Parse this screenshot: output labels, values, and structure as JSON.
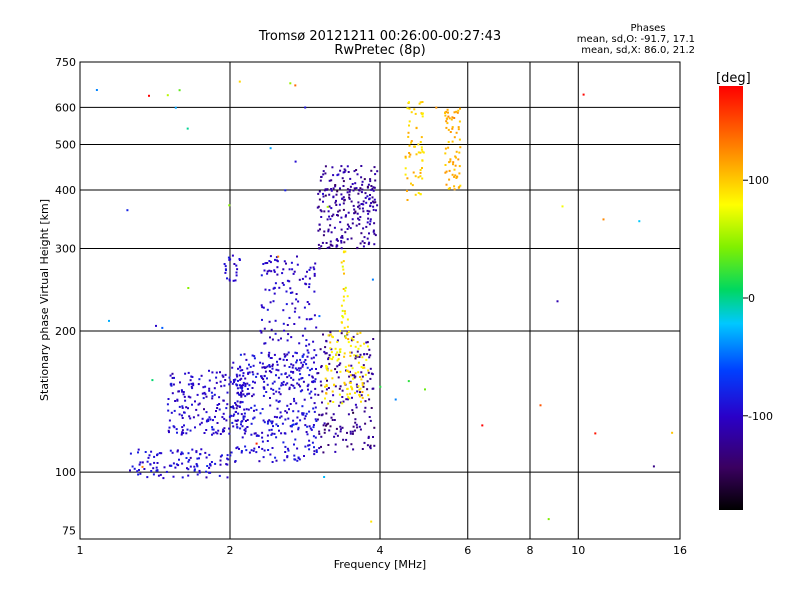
{
  "chart_data": {
    "type": "scatter",
    "title": "Tromsø 20121211 00:26:00-00:27:43",
    "subtitle": "RwPretec (8p)",
    "phases_header": "Phases",
    "phases_o": "mean, sd,O: -91.7, 17.1",
    "phases_x": "mean, sd,X:  86.0, 21.2",
    "xlabel": "Frequency [MHz]",
    "ylabel": "Stationary phase Virtual Height [km]",
    "xscale": "log",
    "yscale": "log",
    "xlim": [
      1,
      16
    ],
    "ylim": [
      72,
      750
    ],
    "xticks": [
      1,
      2,
      4,
      6,
      8,
      10,
      16
    ],
    "xtick_labels": [
      "1",
      "2",
      "4",
      "6",
      "8",
      "10",
      "16"
    ],
    "yticks": [
      75,
      100,
      200,
      300,
      400,
      500,
      600,
      750
    ],
    "ytick_labels": [
      "75",
      "100",
      "200",
      "300",
      "400",
      "500",
      "600",
      "750"
    ],
    "grid": true,
    "colorbar": {
      "label": "[deg]",
      "range": [
        -180,
        180
      ],
      "ticks": [
        100,
        0,
        -100
      ],
      "tick_labels": [
        "100",
        "0",
        "-100"
      ]
    },
    "clusters": [
      {
        "name": "o-low",
        "fmin": 1.25,
        "fmax": 2.0,
        "hmin": 97,
        "hmax": 112,
        "n": 110,
        "phase_mean": -95,
        "phase_sd": 8
      },
      {
        "name": "o-mid1",
        "fmin": 1.5,
        "fmax": 2.2,
        "hmin": 120,
        "hmax": 165,
        "n": 210,
        "phase_mean": -98,
        "phase_sd": 8
      },
      {
        "name": "o-mid2",
        "fmin": 2.0,
        "fmax": 3.0,
        "hmin": 105,
        "hmax": 180,
        "n": 340,
        "phase_mean": -95,
        "phase_sd": 9
      },
      {
        "name": "o-upper",
        "fmin": 2.3,
        "fmax": 3.0,
        "hmin": 150,
        "hmax": 290,
        "n": 160,
        "phase_mean": -100,
        "phase_sd": 8
      },
      {
        "name": "o-patch",
        "fmin": 1.95,
        "fmax": 2.1,
        "hmin": 255,
        "hmax": 290,
        "n": 22,
        "phase_mean": -96,
        "phase_sd": 6
      },
      {
        "name": "o-F",
        "fmin": 3.0,
        "fmax": 3.9,
        "hmin": 110,
        "hmax": 200,
        "n": 180,
        "phase_mean": -125,
        "phase_sd": 10
      },
      {
        "name": "o-F2",
        "fmin": 3.0,
        "fmax": 3.95,
        "hmin": 300,
        "hmax": 450,
        "n": 240,
        "phase_mean": -120,
        "phase_sd": 10
      },
      {
        "name": "x-F",
        "fmin": 3.1,
        "fmax": 3.8,
        "hmin": 140,
        "hmax": 200,
        "n": 110,
        "phase_mean": 88,
        "phase_sd": 10
      },
      {
        "name": "x-F-stem",
        "fmin": 3.35,
        "fmax": 3.45,
        "hmin": 200,
        "hmax": 300,
        "n": 25,
        "phase_mean": 85,
        "phase_sd": 8
      },
      {
        "name": "x-F2a",
        "fmin": 4.5,
        "fmax": 4.9,
        "hmin": 380,
        "hmax": 620,
        "n": 60,
        "phase_mean": 100,
        "phase_sd": 10
      },
      {
        "name": "x-F2b",
        "fmin": 5.4,
        "fmax": 5.8,
        "hmin": 400,
        "hmax": 600,
        "n": 70,
        "phase_mean": 110,
        "phase_sd": 8
      },
      {
        "name": "noise",
        "fmin": 1.0,
        "fmax": 16,
        "hmin": 75,
        "hmax": 700,
        "n": 45,
        "phase_mean": 0,
        "phase_sd": 100
      }
    ]
  }
}
